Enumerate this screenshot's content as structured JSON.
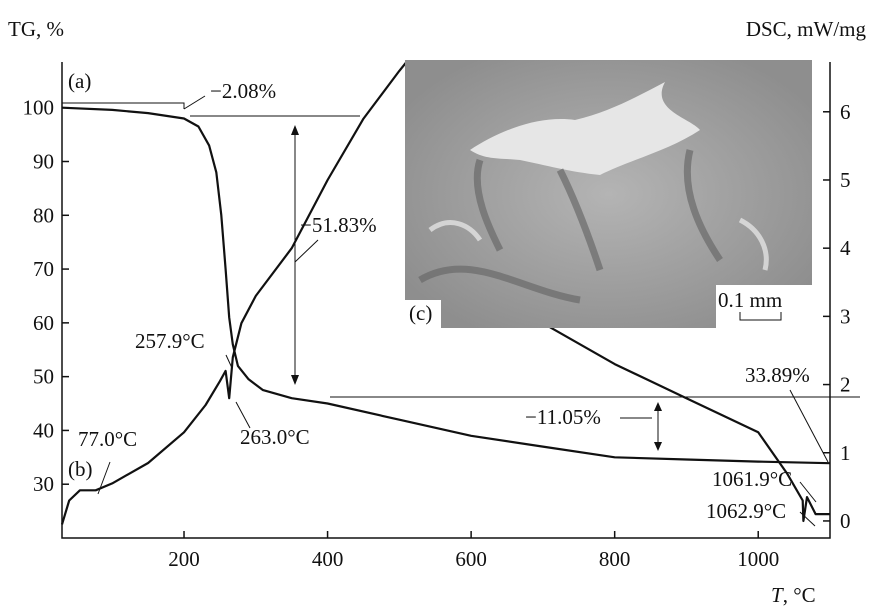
{
  "chart_data": {
    "type": "line",
    "y_label": "TG, %",
    "y2_label": "DSC, mW/mg",
    "x_label_var": "T",
    "x_label_unit": ", °C",
    "xlim": [
      30,
      1100
    ],
    "ylim": [
      20,
      108.5
    ],
    "y2lim": [
      -0.25,
      6.73
    ],
    "xticks": [
      200,
      400,
      600,
      800,
      1000
    ],
    "yticks": [
      30,
      40,
      50,
      60,
      70,
      80,
      90,
      100
    ],
    "y2ticks": [
      0,
      1,
      2,
      3,
      4,
      5,
      6
    ],
    "series": [
      {
        "color": "#111111",
        "x": [
          30,
          100,
          150,
          200,
          220,
          235,
          245,
          252,
          258,
          263,
          268,
          275,
          290,
          310,
          350,
          400,
          500,
          600,
          700,
          800,
          900,
          1000,
          1100
        ],
        "values": [
          100,
          99.6,
          99,
          98,
          96.5,
          93,
          88,
          80,
          70,
          61,
          56,
          52,
          49.5,
          47.5,
          46,
          45,
          42,
          39,
          37,
          35,
          34.6,
          34.2,
          33.9
        ]
      },
      {
        "color": "#111111",
        "axis": "y2",
        "x": [
          30,
          40,
          55,
          77,
          100,
          150,
          200,
          230,
          250,
          257.9,
          263,
          268,
          280,
          300,
          350,
          400,
          450,
          500,
          510,
          700,
          800,
          900,
          1000,
          1040,
          1061.9,
          1062.9,
          1068,
          1080,
          1100
        ],
        "values": [
          -0.05,
          0.3,
          0.45,
          0.45,
          0.55,
          0.85,
          1.3,
          1.7,
          2.05,
          2.2,
          1.8,
          2.4,
          2.9,
          3.3,
          4.0,
          5.0,
          5.9,
          6.6,
          6.73,
          2.9,
          2.3,
          1.8,
          1.3,
          0.7,
          0.3,
          0.0,
          0.35,
          0.1,
          0.1
        ]
      }
    ],
    "annotations": [
      "(a)",
      "−2.08%",
      "−51.83%",
      "257.9°C",
      "263.0°C",
      "77.0°C",
      "(b)",
      "−11.05%",
      "33.89%",
      "1061.9°C",
      "1062.9°C"
    ],
    "inset_label": "(c)",
    "inset_scale": "0.1 mm"
  }
}
